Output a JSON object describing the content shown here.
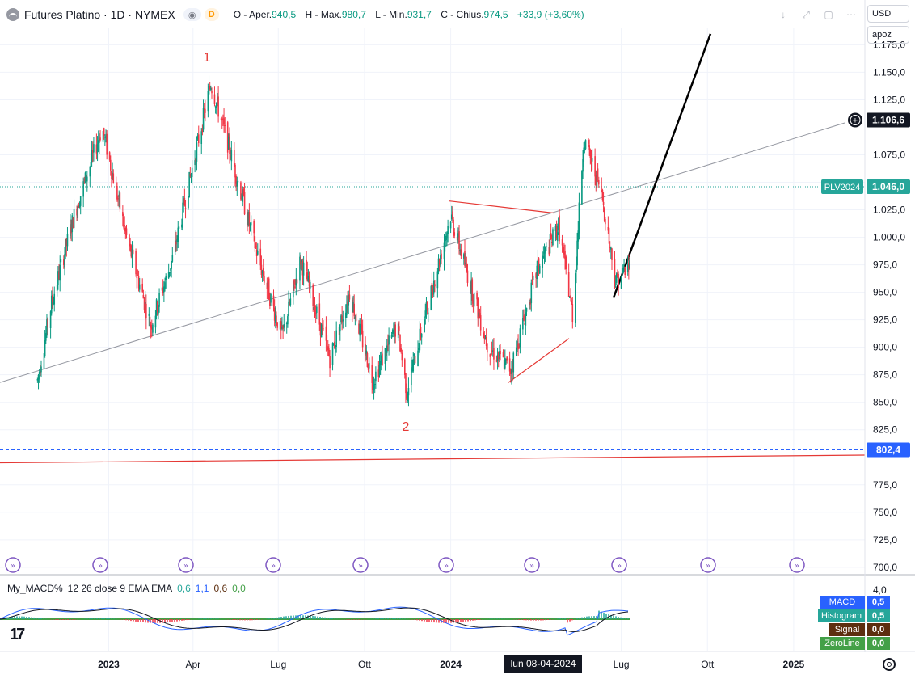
{
  "header": {
    "title": "Futures Platino · 1D · NYMEX",
    "interval_badge": "D",
    "ohlc": [
      {
        "label": "O",
        "key_text": "Aper.",
        "value": "940,5"
      },
      {
        "label": "H",
        "key_text": "Max.",
        "value": "980,7"
      },
      {
        "label": "L",
        "key_text": "Min.",
        "value": "931,7"
      },
      {
        "label": "C",
        "key_text": "Chius.",
        "value": "974,5"
      }
    ],
    "change": "+33,9 (+3,60%)"
  },
  "currency": "USD",
  "scale_mode": "apoz",
  "price_axis": {
    "ticks": [
      "1.175,0",
      "1.150,0",
      "1.125,0",
      "1.075,0",
      "1.050,0",
      "1.025,0",
      "1.000,0",
      "975,0",
      "950,0",
      "925,0",
      "900,0",
      "875,0",
      "850,0",
      "825,0",
      "775,0",
      "750,0",
      "725,0",
      "700,0"
    ],
    "tick_values": [
      1175,
      1150,
      1125,
      1075,
      1050,
      1025,
      1000,
      975,
      950,
      925,
      900,
      875,
      850,
      825,
      775,
      750,
      725,
      700
    ],
    "partial_ticks": [
      "1.100,0"
    ],
    "range": [
      694,
      1190
    ],
    "labels": [
      {
        "text": "1.106,6",
        "value": 1106.6,
        "color": "#131722",
        "icon": "plus-circle-icon"
      },
      {
        "text": "1.046,0",
        "value": 1046.0,
        "color": "#26a69a",
        "tag": "PLV2024"
      },
      {
        "text": "802,4",
        "value": 802.4,
        "color": "#2962ff"
      }
    ]
  },
  "time_axis": {
    "labels": [
      "2023",
      "Apr",
      "Lug",
      "Ott",
      "2024",
      "Lug",
      "Ott",
      "2025"
    ],
    "crosshair_label": "lun 08-04-2024"
  },
  "annotations": {
    "wave_labels": [
      "1",
      "2"
    ],
    "label_color": "#e53935"
  },
  "macd": {
    "name": "My_MACD%",
    "params": "12 26 close 9 EMA EMA",
    "values": [
      "0,6",
      "1,1",
      "0,6",
      "0,0"
    ],
    "axis_tick": "4,0",
    "badges": [
      {
        "name": "MACD",
        "value": "0,5",
        "color": "#2962ff"
      },
      {
        "name": "Histogram",
        "value": "0,5",
        "color": "#26a69a"
      },
      {
        "name": "Signal",
        "value": "0,0",
        "color": "#5d2e0f"
      },
      {
        "name": "ZeroLine",
        "value": "0,0",
        "color": "#43a047"
      }
    ]
  },
  "logo": "17",
  "chart_data": {
    "type": "candlestick",
    "title": "Futures Platino · 1D · NYMEX",
    "x_range": [
      "2022-10",
      "2025-03"
    ],
    "ylim": [
      694,
      1190
    ],
    "up_color": "#089981",
    "down_color": "#f23645",
    "close_path": [
      {
        "date": "2022-10-17",
        "close": 870
      },
      {
        "date": "2022-11-01",
        "close": 940
      },
      {
        "date": "2022-11-25",
        "close": 1020
      },
      {
        "date": "2022-12-25",
        "close": 1100
      },
      {
        "date": "2023-01-20",
        "close": 1000
      },
      {
        "date": "2023-02-15",
        "close": 920
      },
      {
        "date": "2023-03-10",
        "close": 980
      },
      {
        "date": "2023-04-20",
        "close": 1140
      },
      {
        "date": "2023-05-10",
        "close": 1080
      },
      {
        "date": "2023-06-10",
        "close": 980
      },
      {
        "date": "2023-07-05",
        "close": 910
      },
      {
        "date": "2023-07-25",
        "close": 980
      },
      {
        "date": "2023-08-25",
        "close": 890
      },
      {
        "date": "2023-09-15",
        "close": 950
      },
      {
        "date": "2023-10-10",
        "close": 870
      },
      {
        "date": "2023-11-05",
        "close": 920
      },
      {
        "date": "2023-11-15",
        "close": 860
      },
      {
        "date": "2023-12-05",
        "close": 930
      },
      {
        "date": "2024-01-01",
        "close": 1020
      },
      {
        "date": "2024-02-10",
        "close": 900
      },
      {
        "date": "2024-03-05",
        "close": 880
      },
      {
        "date": "2024-04-02",
        "close": 970
      },
      {
        "date": "2024-04-25",
        "close": 1010
      },
      {
        "date": "2024-05-10",
        "close": 930
      },
      {
        "date": "2024-05-22",
        "close": 1090
      },
      {
        "date": "2024-06-10",
        "close": 1040
      },
      {
        "date": "2024-06-25",
        "close": 960
      },
      {
        "date": "2024-07-10",
        "close": 974.5
      }
    ]
  }
}
